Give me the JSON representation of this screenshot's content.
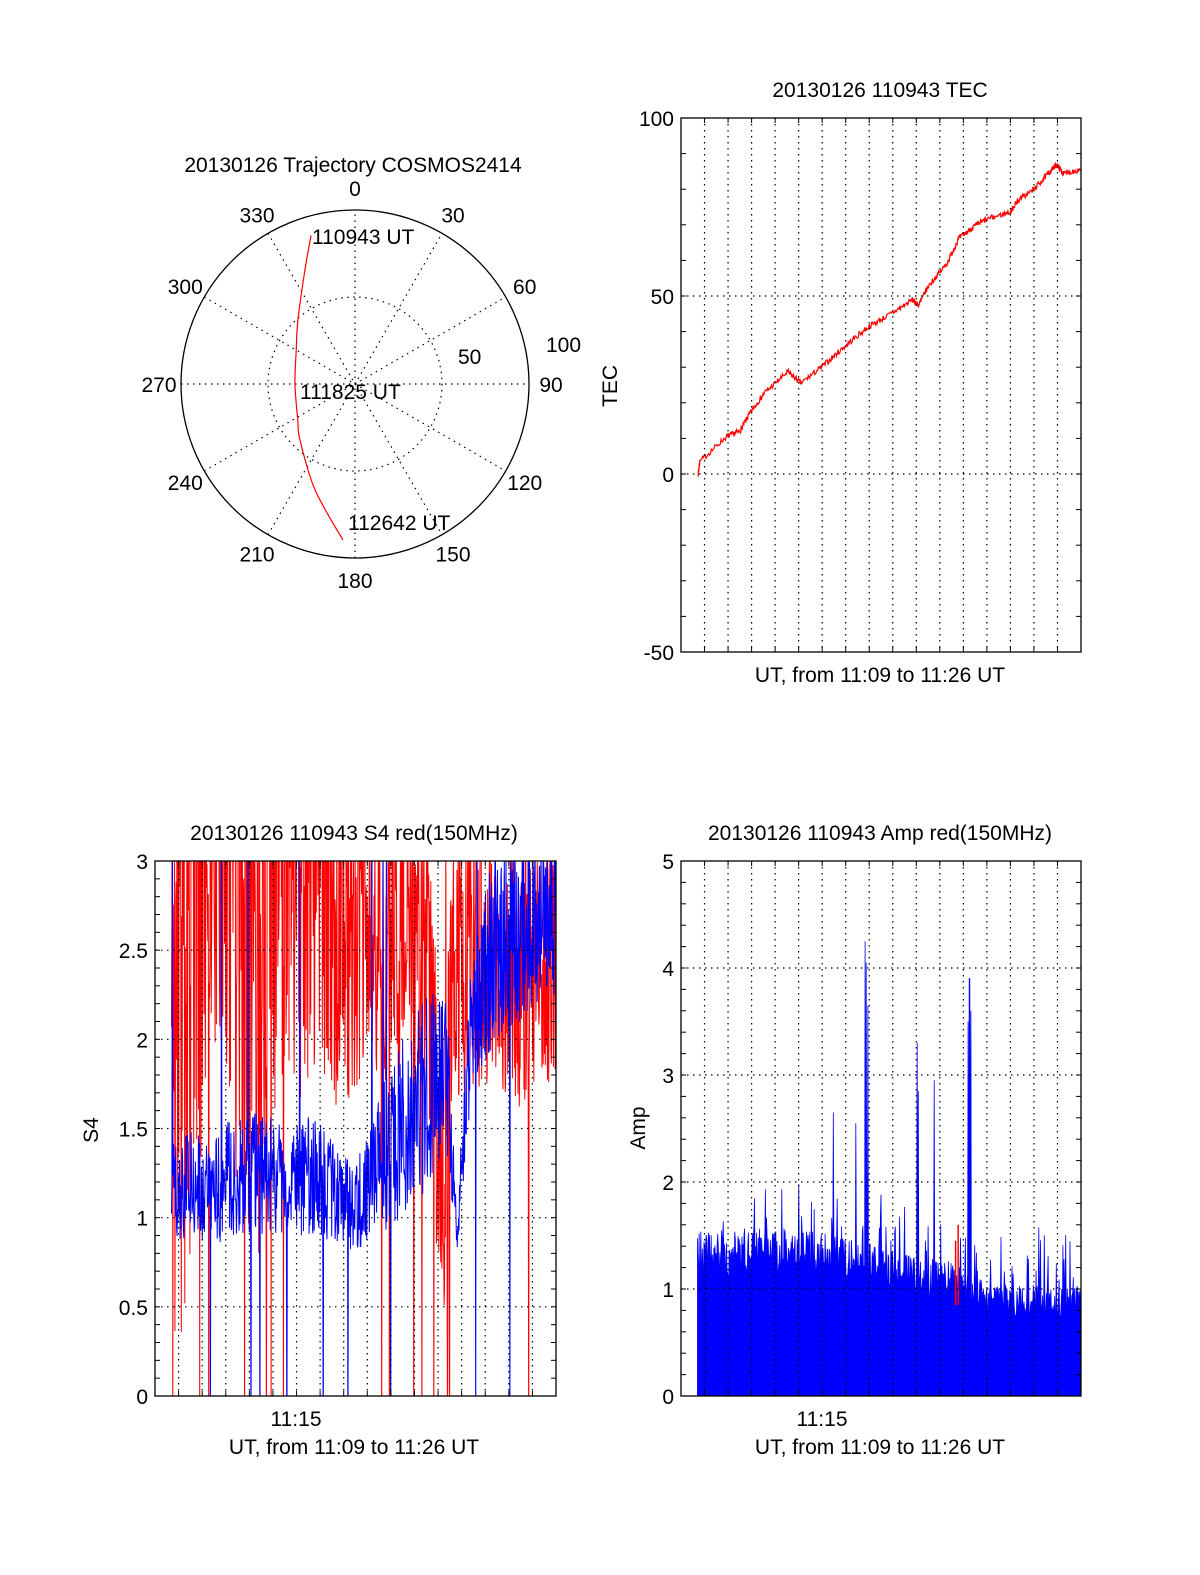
{
  "chart_data": [
    {
      "type": "polar",
      "title": "20130126 Trajectory COSMOS2414",
      "azimuth_ticks": [
        "0",
        "30",
        "60",
        "90",
        "120",
        "150",
        "180",
        "210",
        "240",
        "270",
        "300",
        "330"
      ],
      "radial_ticks": [
        "50",
        "100"
      ],
      "rlim": [
        0,
        100
      ],
      "grid": true,
      "series_color": "#ff0000",
      "trajectory_az_zd": [
        [
          343.5,
          89
        ],
        [
          336.3,
          71.6
        ],
        [
          318.3,
          49.3
        ],
        [
          300,
          39
        ],
        [
          270,
          34.5
        ],
        [
          238,
          38.8
        ],
        [
          224.5,
          45.1
        ],
        [
          200.7,
          65
        ],
        [
          184.4,
          90
        ]
      ],
      "annotations": [
        {
          "text": "110943 UT",
          "at": "start"
        },
        {
          "text": "111825 UT",
          "at": "center"
        },
        {
          "text": "112642 UT",
          "at": "end"
        }
      ]
    },
    {
      "type": "line",
      "title": "20130126 110943 TEC",
      "xlabel": "UT, from 11:09 to 11:26 UT",
      "ylabel": "TEC",
      "xlim_minutes_after_11h": [
        9,
        26
      ],
      "ylim": [
        -50,
        100
      ],
      "yticks": [
        "-50",
        "0",
        "50",
        "100"
      ],
      "ytick_values": [
        -50,
        0,
        50,
        100
      ],
      "grid": true,
      "series": [
        {
          "name": "TEC",
          "color": "#ff0000",
          "x": [
            9.73,
            9.8,
            10.93,
            11.5,
            11.92,
            12.55,
            13.54,
            14.1,
            15.02,
            16.0,
            17.0,
            17.98,
            18.83,
            19.1,
            19.5,
            20.3,
            20.8,
            21.4,
            21.93,
            23.0,
            23.3,
            24.0,
            24.6,
            24.97,
            25.25,
            26.0
          ],
          "y": [
            0,
            3.5,
            10.5,
            12,
            17,
            22.8,
            28.7,
            25.5,
            30.3,
            36.1,
            41.5,
            45.2,
            48.9,
            47.4,
            52.7,
            59.1,
            66.1,
            69.3,
            71.4,
            73.6,
            76.8,
            80,
            84.3,
            87,
            84.3,
            85.6
          ]
        }
      ]
    },
    {
      "type": "line",
      "title": "20130126 110943 S4 red(150MHz)",
      "xlabel": "UT, from 11:09 to 11:26 UT",
      "ylabel": "S4",
      "xtick_label": "11:15",
      "xtick_value": 15,
      "xlim_minutes_after_11h": [
        9,
        26
      ],
      "ylim": [
        0,
        3
      ],
      "yticks": [
        "0",
        "0.5",
        "1",
        "1.5",
        "2",
        "2.5",
        "3"
      ],
      "ytick_values": [
        0,
        0.5,
        1,
        1.5,
        2,
        2.5,
        3
      ],
      "grid": true,
      "series": [
        {
          "name": "red",
          "color": "#ff0000",
          "x": [
            9.7,
            10.5,
            11.5,
            12.5,
            13.5,
            14.5,
            15.5,
            16.5,
            17.5,
            18.5,
            19.5,
            20.5,
            21.3,
            21.6,
            22.5,
            23.5,
            24.5,
            25.5,
            26.0
          ],
          "center": [
            2.0,
            3.3,
            3.5,
            3.3,
            3.2,
            3.4,
            3.1,
            2.8,
            2.6,
            2.5,
            2.6,
            2.5,
            1.0,
            2.3,
            2.5,
            2.4,
            2.3,
            2.4,
            2.4
          ],
          "spread": [
            3.0,
            2.5,
            1.5,
            2.2,
            2.5,
            1.5,
            1.6,
            1.2,
            0.9,
            0.8,
            0.8,
            0.8,
            1.0,
            0.8,
            0.8,
            0.7,
            0.7,
            0.7,
            0.7
          ]
        },
        {
          "name": "blue",
          "color": "#0000ff",
          "x": [
            9.7,
            10.5,
            11.5,
            12.5,
            13.5,
            14.5,
            15.5,
            16.5,
            17.5,
            18.5,
            19.5,
            20.5,
            21.3,
            21.8,
            22.5,
            23.5,
            24.5,
            25.5,
            26.0
          ],
          "center": [
            1.15,
            1.2,
            1.15,
            1.25,
            1.25,
            1.2,
            1.25,
            1.15,
            1.05,
            1.3,
            1.5,
            1.7,
            1.9,
            0.9,
            2.3,
            2.5,
            2.6,
            2.7,
            2.7
          ],
          "spread": [
            0.3,
            0.3,
            0.3,
            0.35,
            0.35,
            0.3,
            0.35,
            0.3,
            0.25,
            0.4,
            0.5,
            0.55,
            0.5,
            0.1,
            0.55,
            0.5,
            0.5,
            0.45,
            0.45
          ]
        }
      ]
    },
    {
      "type": "bar",
      "title": "20130126 110943 Amp red(150MHz)",
      "xlabel": "UT, from 11:09 to 11:26 UT",
      "ylabel": "Amp",
      "xtick_label": "11:15",
      "xtick_value": 15,
      "xlim_minutes_after_11h": [
        9,
        26
      ],
      "ylim": [
        0,
        5
      ],
      "yticks": [
        "0",
        "1",
        "2",
        "3",
        "4",
        "5"
      ],
      "ytick_values": [
        0,
        1,
        2,
        3,
        4,
        5
      ],
      "grid": true,
      "series": [
        {
          "name": "blue",
          "color": "#0000ff",
          "baseline_x": [
            9.7,
            12,
            15,
            17,
            19,
            20.5,
            21.5,
            23,
            26
          ],
          "baseline_y": [
            1.4,
            1.45,
            1.4,
            1.3,
            1.2,
            1.15,
            1.0,
            0.95,
            0.95
          ],
          "spikes_x": [
            15.47,
            16.43,
            16.83,
            16.88,
            16.95,
            19.03,
            19.08,
            19.75,
            21.2,
            21.26,
            21.32
          ],
          "spikes_y": [
            2.65,
            2.55,
            4.25,
            4.05,
            3.65,
            3.3,
            2.85,
            2.95,
            3.5,
            3.9,
            3.6
          ]
        },
        {
          "name": "red",
          "color": "#ff0000",
          "x": [
            20.67,
            20.78
          ],
          "y": [
            1.45,
            1.6
          ]
        }
      ]
    }
  ]
}
